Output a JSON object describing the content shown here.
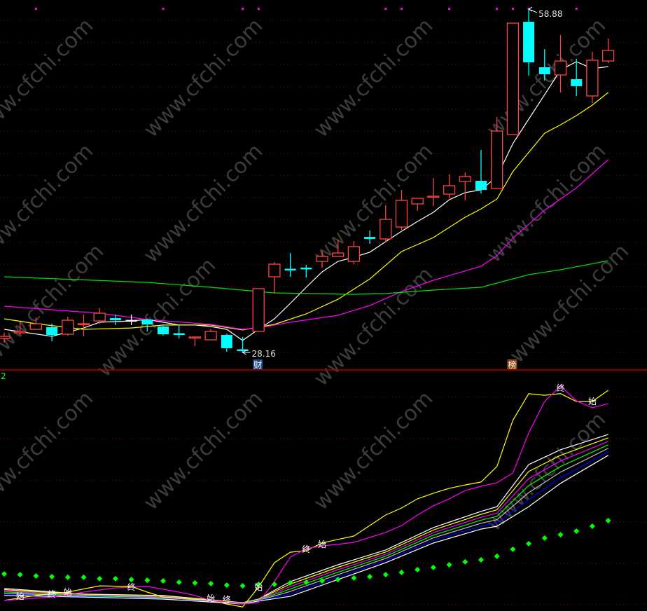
{
  "panel_label": "2",
  "watermark": "www.cfchi.com",
  "event_markers": [
    {
      "index": 16,
      "label": "财",
      "bg": "#1f4f8f"
    },
    {
      "index": 32,
      "label": "榜",
      "bg": "#8a4a10"
    }
  ],
  "colors": {
    "up": "#ff4444",
    "down": "#00ffff",
    "doji": "#ffffff",
    "grid": "#7a0000",
    "separator": "#b00000",
    "signal_dots": "#00ff00",
    "top_dots": "#ff00ff"
  },
  "chart_data": [
    {
      "type": "candlestick",
      "panel": "main",
      "ylim": [
        28.16,
        58.88
      ],
      "grid": true,
      "high_label": {
        "index": 33,
        "value": "58.88"
      },
      "low_label": {
        "index": 15,
        "value": "28.16"
      },
      "top_dot_indices": [
        2,
        10,
        15,
        16,
        24,
        25,
        28,
        31,
        32,
        33,
        36
      ],
      "ohlc": [
        [
          29.41,
          29.92,
          29.04,
          29.6
        ],
        [
          29.92,
          30.92,
          29.79,
          30.04
        ],
        [
          30.23,
          31.3,
          30.23,
          30.73
        ],
        [
          30.42,
          30.73,
          29.16,
          29.73
        ],
        [
          29.79,
          31.36,
          29.66,
          31.04
        ],
        [
          30.67,
          31.55,
          29.6,
          30.73
        ],
        [
          30.98,
          32.11,
          30.73,
          31.67
        ],
        [
          31.23,
          31.55,
          30.61,
          31.04
        ],
        [
          31.04,
          31.55,
          30.61,
          31.04
        ],
        [
          31.11,
          31.17,
          30.04,
          30.67
        ],
        [
          30.48,
          30.67,
          29.66,
          29.79
        ],
        [
          29.85,
          30.61,
          29.41,
          29.73
        ],
        [
          29.5,
          29.6,
          28.72,
          29.54
        ],
        [
          29.29,
          30.23,
          29.29,
          30.04
        ],
        [
          29.73,
          29.85,
          28.22,
          28.54
        ],
        [
          28.41,
          29.54,
          28.16,
          28.29
        ],
        [
          30.04,
          33.87,
          30.04,
          33.87
        ],
        [
          34.93,
          36.25,
          33.43,
          36.06
        ],
        [
          35.62,
          37.06,
          34.93,
          35.56
        ],
        [
          35.75,
          36.0,
          34.87,
          35.62
        ],
        [
          36.31,
          37.25,
          35.75,
          36.75
        ],
        [
          36.75,
          38.25,
          36.75,
          37.06
        ],
        [
          36.31,
          38.13,
          36.06,
          37.63
        ],
        [
          38.5,
          39.07,
          37.88,
          38.32
        ],
        [
          38.32,
          41.33,
          38.07,
          40.07
        ],
        [
          39.38,
          42.71,
          39.13,
          41.77
        ],
        [
          41.45,
          41.95,
          40.83,
          41.95
        ],
        [
          42.08,
          43.77,
          41.26,
          42.14
        ],
        [
          42.33,
          44.09,
          41.95,
          43.08
        ],
        [
          43.46,
          44.27,
          41.77,
          43.9
        ],
        [
          43.52,
          46.28,
          42.39,
          42.71
        ],
        [
          42.83,
          49.23,
          42.83,
          47.97
        ],
        [
          47.66,
          57.63,
          47.66,
          57.63
        ],
        [
          57.75,
          58.88,
          52.93,
          54.12
        ],
        [
          53.68,
          55.31,
          52.49,
          53.05
        ],
        [
          52.99,
          56.56,
          51.42,
          54.24
        ],
        [
          52.61,
          54.43,
          51.11,
          51.99
        ],
        [
          51.11,
          55.06,
          50.48,
          54.31
        ],
        [
          54.24,
          56.25,
          54.05,
          55.18
        ]
      ],
      "lines": [
        {
          "color": "#ffffff",
          "points": [
            [
              0,
              30.23
            ],
            [
              3,
              29.6
            ],
            [
              5,
              30.35
            ],
            [
              6,
              30.86
            ],
            [
              8,
              30.98
            ],
            [
              9,
              31.11
            ],
            [
              10,
              30.86
            ],
            [
              11,
              30.61
            ],
            [
              12,
              30.61
            ],
            [
              13,
              30.48
            ],
            [
              14,
              30.23
            ],
            [
              15,
              29.23
            ],
            [
              16,
              30.23
            ],
            [
              17,
              31.17
            ],
            [
              18,
              32.55
            ],
            [
              19,
              33.99
            ],
            [
              20,
              35.37
            ],
            [
              21,
              36.31
            ],
            [
              22,
              36.69
            ],
            [
              23,
              37.13
            ],
            [
              24,
              38.07
            ],
            [
              25,
              39.01
            ],
            [
              26,
              39.88
            ],
            [
              27,
              40.7
            ],
            [
              28,
              41.83
            ],
            [
              29,
              42.46
            ],
            [
              30,
              42.71
            ],
            [
              31,
              43.9
            ],
            [
              32,
              46.84
            ],
            [
              33,
              49.04
            ],
            [
              34,
              51.23
            ],
            [
              35,
              53.43
            ],
            [
              36,
              54.18
            ],
            [
              37,
              53.55
            ],
            [
              38,
              53.74
            ]
          ]
        },
        {
          "color": "#ffff00",
          "points": [
            [
              0,
              31.17
            ],
            [
              2,
              30.73
            ],
            [
              5,
              30.23
            ],
            [
              8,
              30.35
            ],
            [
              10,
              30.61
            ],
            [
              13,
              30.61
            ],
            [
              15,
              30.17
            ],
            [
              17,
              30.67
            ],
            [
              19,
              31.61
            ],
            [
              21,
              32.92
            ],
            [
              23,
              34.74
            ],
            [
              25,
              37.19
            ],
            [
              27,
              38.44
            ],
            [
              29,
              40.26
            ],
            [
              30,
              41.01
            ],
            [
              31,
              41.89
            ],
            [
              32,
              44.34
            ],
            [
              34,
              47.78
            ],
            [
              35,
              48.53
            ],
            [
              36,
              49.35
            ],
            [
              37,
              50.29
            ],
            [
              38,
              51.42
            ]
          ]
        },
        {
          "color": "#ff00ff",
          "points": [
            [
              0,
              32.3
            ],
            [
              3,
              31.98
            ],
            [
              6,
              31.67
            ],
            [
              9,
              31.11
            ],
            [
              13,
              30.67
            ],
            [
              15,
              30.23
            ],
            [
              16,
              30.35
            ],
            [
              18,
              30.86
            ],
            [
              21,
              31.48
            ],
            [
              23,
              32.36
            ],
            [
              25,
              33.61
            ],
            [
              27,
              34.62
            ],
            [
              30,
              35.87
            ],
            [
              31,
              36.81
            ],
            [
              32,
              38.38
            ],
            [
              34,
              40.89
            ],
            [
              36,
              42.89
            ],
            [
              37,
              44.15
            ],
            [
              38,
              45.4
            ]
          ]
        },
        {
          "color": "#00e000",
          "points": [
            [
              0,
              34.93
            ],
            [
              9,
              34.43
            ],
            [
              13,
              33.99
            ],
            [
              16,
              33.61
            ],
            [
              17,
              33.49
            ],
            [
              22,
              33.36
            ],
            [
              24,
              33.43
            ],
            [
              27,
              33.74
            ],
            [
              30,
              33.99
            ],
            [
              31,
              34.37
            ],
            [
              33,
              35.12
            ],
            [
              35,
              35.56
            ],
            [
              38,
              36.37
            ]
          ]
        }
      ]
    },
    {
      "type": "line",
      "panel": "indicator",
      "ylim": [
        0,
        100
      ],
      "grid": true,
      "fast_lines": [
        {
          "color": "#ffff00",
          "points": [
            [
              0,
              1.6
            ],
            [
              2,
              3.8
            ],
            [
              4,
              5.3
            ],
            [
              6,
              8.1
            ],
            [
              8,
              7.8
            ],
            [
              9,
              5.3
            ],
            [
              10,
              3.1
            ],
            [
              13,
              1.6
            ],
            [
              14,
              0
            ],
            [
              15,
              -1.3
            ],
            [
              16,
              7.5
            ],
            [
              17,
              18.4
            ],
            [
              18,
              23.1
            ],
            [
              19,
              23.8
            ],
            [
              20,
              27.2
            ],
            [
              21,
              28.8
            ],
            [
              22,
              30.3
            ],
            [
              23,
              35
            ],
            [
              24,
              39.7
            ],
            [
              25,
              42.8
            ],
            [
              26,
              46.9
            ],
            [
              27,
              49.4
            ],
            [
              28,
              51.6
            ],
            [
              29,
              53.1
            ],
            [
              30,
              54.4
            ],
            [
              31,
              61.3
            ],
            [
              32,
              81.9
            ],
            [
              33,
              93.8
            ],
            [
              34,
              93.1
            ],
            [
              35,
              93.8
            ],
            [
              36,
              90.3
            ],
            [
              37,
              90.3
            ],
            [
              38,
              95.3
            ]
          ]
        },
        {
          "color": "#ff00ff",
          "points": [
            [
              0,
              1.6
            ],
            [
              3,
              3.1
            ],
            [
              5,
              5.3
            ],
            [
              7,
              7.2
            ],
            [
              9,
              7.8
            ],
            [
              11,
              5.3
            ],
            [
              12,
              3.8
            ],
            [
              13,
              1.6
            ],
            [
              15,
              0
            ],
            [
              16,
              0.6
            ],
            [
              17,
              10
            ],
            [
              18,
              20.9
            ],
            [
              19,
              24.7
            ],
            [
              20,
              25.9
            ],
            [
              21,
              26.6
            ],
            [
              22,
              27.5
            ],
            [
              23,
              29.7
            ],
            [
              24,
              31.9
            ],
            [
              25,
              35
            ],
            [
              26,
              39.7
            ],
            [
              27,
              43.8
            ],
            [
              28,
              46.9
            ],
            [
              29,
              50.6
            ],
            [
              30,
              52.5
            ],
            [
              31,
              54.1
            ],
            [
              32,
              58.4
            ],
            [
              33,
              76.3
            ],
            [
              34,
              90.3
            ],
            [
              35,
              97.2
            ],
            [
              36,
              90.6
            ],
            [
              37,
              87.5
            ],
            [
              38,
              89.4
            ]
          ]
        }
      ],
      "band_indices": [
        0,
        5,
        10,
        15,
        16,
        18,
        21,
        24,
        27,
        30,
        31,
        33,
        35,
        38
      ],
      "band_lines": [
        {
          "color": "#ffffff",
          "values": [
            6.9,
            4.4,
            3.8,
            0.6,
            2.2,
            10.0,
            17.5,
            24.1,
            34.1,
            41.3,
            43.4,
            62.2,
            68.8,
            75.6
          ]
        },
        {
          "color": "#ffff00",
          "values": [
            6.4,
            4.2,
            3.5,
            0.5,
            2.1,
            8.9,
            16.4,
            23.2,
            33.0,
            40.0,
            42.0,
            59.1,
            66.3,
            74.1
          ]
        },
        {
          "color": "#ff00ff",
          "values": [
            5.9,
            4.0,
            3.3,
            0.4,
            1.9,
            7.8,
            15.3,
            22.2,
            31.8,
            38.7,
            40.5,
            55.9,
            63.8,
            72.5
          ]
        },
        {
          "color": "#00ff00",
          "values": [
            5.4,
            3.8,
            3.0,
            0.3,
            1.8,
            6.7,
            14.2,
            21.3,
            30.7,
            37.4,
            39.1,
            52.8,
            61.3,
            71.0
          ]
        },
        {
          "color": "#c0c0c0",
          "values": [
            4.8,
            3.5,
            2.7,
            0.2,
            1.6,
            5.6,
            13.1,
            20.3,
            29.5,
            36.0,
            37.6,
            49.7,
            58.8,
            69.4
          ]
        },
        {
          "color": "#0000ff",
          "values": [
            4.3,
            3.3,
            2.5,
            0.1,
            1.5,
            4.5,
            12.0,
            19.4,
            28.4,
            34.7,
            36.2,
            46.5,
            56.3,
            67.9
          ]
        },
        {
          "color": "#ffffff",
          "values": [
            3.8,
            3.1,
            2.2,
            0,
            1.3,
            3.4,
            10.9,
            18.4,
            27.2,
            33.4,
            34.7,
            43.4,
            53.8,
            66.3
          ]
        }
      ],
      "signal_dots": [
        13.4,
        13.1,
        12.5,
        12.2,
        11.9,
        11.9,
        11.3,
        11.3,
        10.9,
        10.6,
        10.3,
        9.7,
        9.4,
        9.1,
        8.4,
        8.1,
        8.8,
        8.8,
        9.4,
        9.7,
        10.3,
        10.9,
        11.6,
        12.2,
        13.1,
        14.1,
        15.3,
        16.3,
        17.5,
        18.8,
        19.7,
        21.3,
        24.4,
        26.9,
        29.4,
        30.9,
        32.5,
        34.7,
        37.2
      ],
      "annotations": [
        {
          "index": 1,
          "value": 3.8,
          "text": "始"
        },
        {
          "index": 3,
          "value": 4.7,
          "text": "终"
        },
        {
          "index": 4,
          "value": 5.6,
          "text": "始"
        },
        {
          "index": 8,
          "value": 7.8,
          "text": "终"
        },
        {
          "index": 13,
          "value": 2.8,
          "text": "始"
        },
        {
          "index": 14,
          "value": 2.2,
          "text": "终"
        },
        {
          "index": 16,
          "value": 7.8,
          "text": "始"
        },
        {
          "index": 19,
          "value": 24.7,
          "text": "终"
        },
        {
          "index": 20,
          "value": 26.9,
          "text": "始"
        },
        {
          "index": 35,
          "value": 96.6,
          "text": "终"
        },
        {
          "index": 37,
          "value": 90.6,
          "text": "始"
        }
      ]
    }
  ]
}
